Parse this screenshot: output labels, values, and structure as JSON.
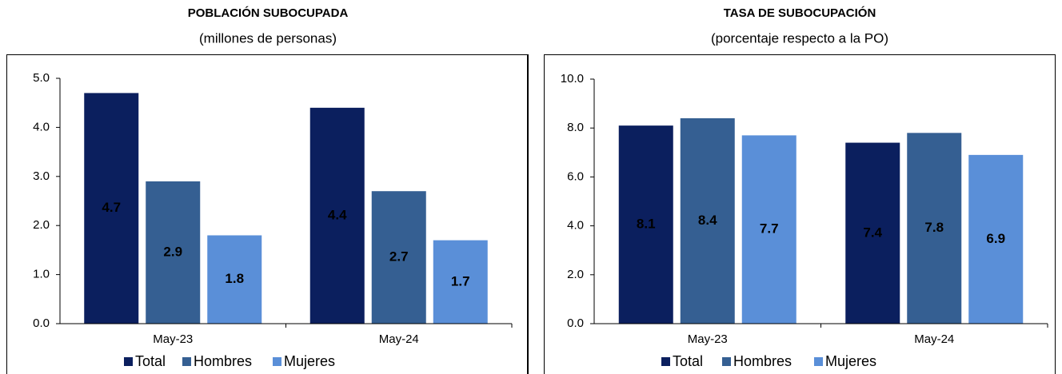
{
  "chart_data": [
    {
      "type": "bar",
      "title": "POBLACIÓN SUBOCUPADA",
      "subtitle": "(millones de personas)",
      "categories": [
        "May-23",
        "May-24"
      ],
      "series": [
        {
          "name": "Total",
          "color": "#0b1f5e",
          "values": [
            4.7,
            4.4
          ]
        },
        {
          "name": "Hombres",
          "color": "#355f92",
          "values": [
            2.9,
            2.7
          ]
        },
        {
          "name": "Mujeres",
          "color": "#5a8fd8",
          "values": [
            1.8,
            1.7
          ]
        }
      ],
      "ylim": [
        0,
        5
      ],
      "yticks": [
        {
          "value": 0,
          "label": "0.0"
        },
        {
          "value": 1,
          "label": "1.0"
        },
        {
          "value": 2,
          "label": "2.0"
        },
        {
          "value": 3,
          "label": "3.0"
        },
        {
          "value": 4,
          "label": "4.0"
        },
        {
          "value": 5,
          "label": "5.0"
        }
      ]
    },
    {
      "type": "bar",
      "title": "TASA DE SUBOCUPACIÓN",
      "subtitle": "(porcentaje respecto a la PO)",
      "categories": [
        "May-23",
        "May-24"
      ],
      "series": [
        {
          "name": "Total",
          "color": "#0b1f5e",
          "values": [
            8.1,
            7.4
          ]
        },
        {
          "name": "Hombres",
          "color": "#355f92",
          "values": [
            8.4,
            7.8
          ]
        },
        {
          "name": "Mujeres",
          "color": "#5a8fd8",
          "values": [
            7.7,
            6.9
          ]
        }
      ],
      "ylim": [
        0,
        10
      ],
      "yticks": [
        {
          "value": 0,
          "label": "0.0"
        },
        {
          "value": 2,
          "label": "2.0"
        },
        {
          "value": 4,
          "label": "4.0"
        },
        {
          "value": 6,
          "label": "6.0"
        },
        {
          "value": 8,
          "label": "8.0"
        },
        {
          "value": 10,
          "label": "10.0"
        }
      ]
    }
  ]
}
